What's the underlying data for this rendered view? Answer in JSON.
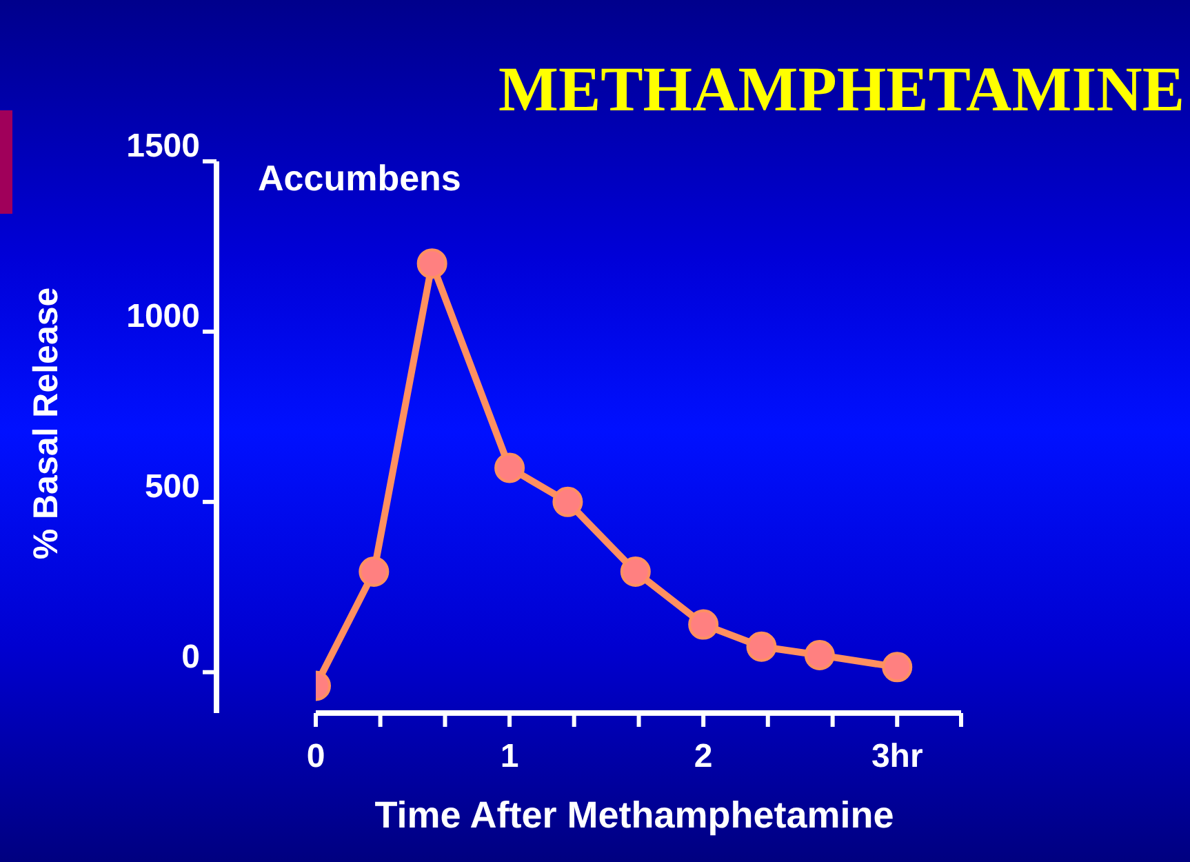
{
  "chart_data": {
    "type": "line",
    "title": "METHAMPHETAMINE",
    "xlabel": "Time After Methamphetamine",
    "ylabel": "% Basal Release",
    "annotations": [
      "Accumbens"
    ],
    "x": [
      0,
      0.3,
      0.6,
      1,
      1.3,
      1.65,
      2,
      2.3,
      2.6,
      3
    ],
    "series": [
      {
        "color": "#ff9060",
        "values": [
          -40,
          295,
          1200,
          600,
          500,
          295,
          140,
          75,
          50,
          15
        ]
      }
    ],
    "xlim": [
      0,
      3.33
    ],
    "xticks": [
      0,
      {
        "value": 0.333,
        "label": null
      },
      {
        "value": 0.667,
        "label": null
      },
      1,
      {
        "value": 1.333,
        "label": null
      },
      {
        "value": 1.667,
        "label": null
      },
      2,
      {
        "value": 2.333,
        "label": null
      },
      {
        "value": 2.667,
        "label": null
      },
      {
        "value": 3,
        "label": "3hr"
      },
      {
        "value": 3.33,
        "label": null
      }
    ],
    "ylim": [
      -120,
      1500
    ],
    "yticks": [
      0,
      500,
      1000,
      1500
    ],
    "grid": false,
    "legend": false,
    "marker": "circle",
    "line_style": "solid"
  }
}
